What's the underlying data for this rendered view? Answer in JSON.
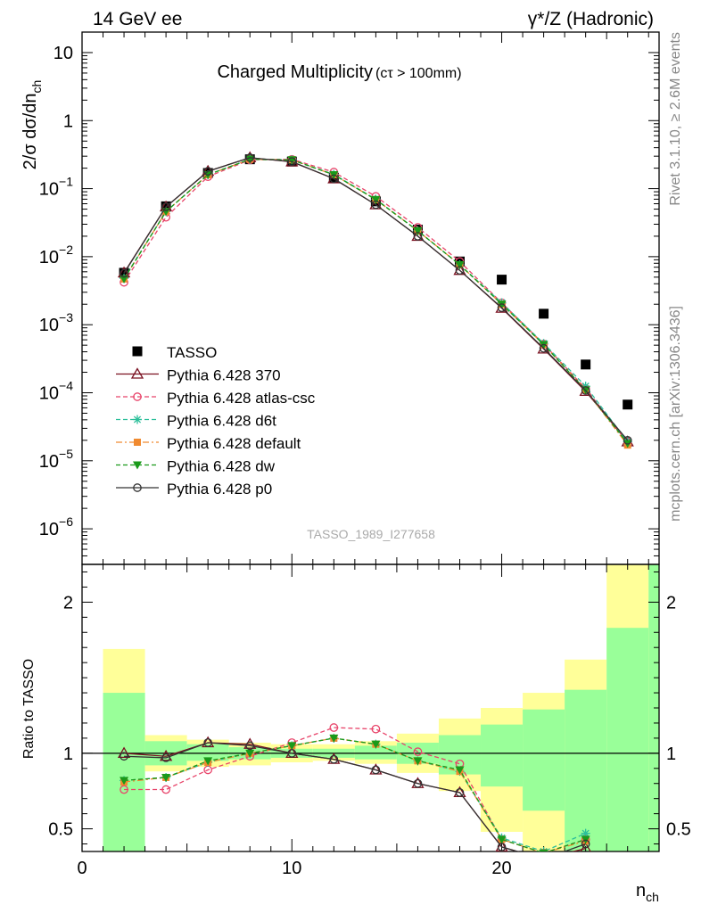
{
  "header": {
    "left": "14 GeV ee",
    "right": "γ*/Z (Hadronic)"
  },
  "side": {
    "rivet": "Rivet 3.1.10, ≥ 2.6M events",
    "mcplots": "mcplots.cern.ch [arXiv:1306.3436]"
  },
  "watermark": "TASSO_1989_I277658",
  "chart_data": [
    {
      "type": "line",
      "title": "Charged Multiplicity",
      "title_suffix": "(cτ > 100mm)",
      "ylabel": "2/σ dσ/dn_ch",
      "ylabel_main": "2/σ dσ/dn",
      "ylabel_sub": "ch",
      "yscale": "log",
      "ylim": [
        3e-07,
        20
      ],
      "xlim": [
        0,
        27.5
      ],
      "yticks": [
        {
          "v": 10,
          "m": "10",
          "e": ""
        },
        {
          "v": 1,
          "m": "1",
          "e": ""
        },
        {
          "v": 0.1,
          "m": "10",
          "e": "−1"
        },
        {
          "v": 0.01,
          "m": "10",
          "e": "−2"
        },
        {
          "v": 0.001,
          "m": "10",
          "e": "−3"
        },
        {
          "v": 0.0001,
          "m": "10",
          "e": "−4"
        },
        {
          "v": 1e-05,
          "m": "10",
          "e": "−5"
        },
        {
          "v": 1e-06,
          "m": "10",
          "e": "−6"
        }
      ],
      "legend_position": "left-middle",
      "series": [
        {
          "name": "TASSO",
          "style": "data",
          "marker": "square",
          "color": "#000000",
          "x": [
            2,
            4,
            6,
            8,
            10,
            12,
            14,
            16,
            18,
            20,
            22,
            24,
            26
          ],
          "y": [
            0.0058,
            0.055,
            0.17,
            0.27,
            0.25,
            0.145,
            0.065,
            0.025,
            0.0085,
            0.0046,
            0.00145,
            0.00026,
            6.7e-05
          ]
        },
        {
          "name": "Pythia 6.428 370",
          "style": "solid",
          "marker": "triangle-open",
          "color": "#7a1020",
          "x": [
            2,
            4,
            6,
            8,
            10,
            12,
            14,
            16,
            18,
            20,
            22,
            24,
            26
          ],
          "y": [
            0.0058,
            0.054,
            0.18,
            0.285,
            0.248,
            0.14,
            0.058,
            0.02,
            0.0063,
            0.00175,
            0.00044,
            0.000105,
            1.9e-05
          ]
        },
        {
          "name": "Pythia 6.428 atlas-csc",
          "style": "dashed",
          "marker": "circle-open",
          "color": "#e8446a",
          "x": [
            2,
            4,
            6,
            8,
            10,
            12,
            14,
            16,
            18,
            20,
            22,
            24,
            26
          ],
          "y": [
            0.0042,
            0.038,
            0.15,
            0.265,
            0.27,
            0.175,
            0.077,
            0.027,
            0.0085,
            0.0021,
            0.00052,
            0.000115,
            1.9e-05
          ]
        },
        {
          "name": "Pythia 6.428 d6t",
          "style": "dashed",
          "marker": "star",
          "color": "#2cbf9a",
          "x": [
            2,
            4,
            6,
            8,
            10,
            12,
            14,
            16,
            18,
            20,
            22,
            24,
            26
          ],
          "y": [
            0.0048,
            0.046,
            0.16,
            0.27,
            0.265,
            0.162,
            0.07,
            0.024,
            0.0076,
            0.0021,
            0.00053,
            0.000125,
            1.9e-05
          ]
        },
        {
          "name": "Pythia 6.428 default",
          "style": "dashdot",
          "marker": "square-filled",
          "color": "#f08a30",
          "x": [
            2,
            4,
            6,
            8,
            10,
            12,
            14,
            16,
            18,
            20,
            22,
            24,
            26
          ],
          "y": [
            0.0047,
            0.046,
            0.16,
            0.27,
            0.265,
            0.16,
            0.069,
            0.024,
            0.0076,
            0.002,
            0.00051,
            0.00011,
            1.7e-05
          ]
        },
        {
          "name": "Pythia 6.428 dw",
          "style": "dashed",
          "marker": "triangle-down",
          "color": "#1a9a1a",
          "x": [
            2,
            4,
            6,
            8,
            10,
            12,
            14,
            16,
            18,
            20,
            22,
            24,
            26
          ],
          "y": [
            0.0047,
            0.046,
            0.16,
            0.27,
            0.265,
            0.16,
            0.069,
            0.024,
            0.0076,
            0.002,
            0.00051,
            0.00011,
            1.8e-05
          ]
        },
        {
          "name": "Pythia 6.428 p0",
          "style": "solid",
          "marker": "circle-open",
          "color": "#333333",
          "x": [
            2,
            4,
            6,
            8,
            10,
            12,
            14,
            16,
            18,
            20,
            22,
            24,
            26
          ],
          "y": [
            0.0057,
            0.054,
            0.18,
            0.285,
            0.25,
            0.14,
            0.058,
            0.02,
            0.0063,
            0.00178,
            0.00045,
            0.000108,
            2e-05
          ]
        }
      ]
    },
    {
      "type": "line",
      "ylabel": "Ratio to TASSO",
      "xlabel": "n_ch",
      "xlabel_main": "n",
      "xlabel_sub": "ch",
      "xlim": [
        0,
        27.5
      ],
      "ylim": [
        0.35,
        2.25
      ],
      "xticks": [
        0,
        10,
        20
      ],
      "yticks": [
        {
          "v": 0.5,
          "m": "0.5",
          "e": ""
        },
        {
          "v": 1,
          "m": "1",
          "e": ""
        },
        {
          "v": 2,
          "m": "2",
          "e": ""
        }
      ],
      "bands": [
        {
          "x0": 1,
          "x1": 3,
          "y1": [
            0.73,
            1.69
          ],
          "y2": [
            0.35,
            1.4
          ]
        },
        {
          "x0": 3,
          "x1": 5,
          "y1": [
            0.88,
            1.12
          ],
          "y2": [
            0.92,
            1.08
          ]
        },
        {
          "x0": 5,
          "x1": 7,
          "y1": [
            0.91,
            1.09
          ],
          "y2": [
            0.95,
            1.06
          ]
        },
        {
          "x0": 7,
          "x1": 9,
          "y1": [
            0.92,
            1.07
          ],
          "y2": [
            0.96,
            1.04
          ]
        },
        {
          "x0": 9,
          "x1": 11,
          "y1": [
            0.94,
            1.06
          ],
          "y2": [
            0.97,
            1.03
          ]
        },
        {
          "x0": 11,
          "x1": 13,
          "y1": [
            0.95,
            1.06
          ],
          "y2": [
            0.97,
            1.03
          ]
        },
        {
          "x0": 13,
          "x1": 15,
          "y1": [
            0.93,
            1.08
          ],
          "y2": [
            0.96,
            1.05
          ]
        },
        {
          "x0": 15,
          "x1": 17,
          "y1": [
            0.87,
            1.13
          ],
          "y2": [
            0.93,
            1.07
          ]
        },
        {
          "x0": 17,
          "x1": 19,
          "y1": [
            0.75,
            1.23
          ],
          "y2": [
            0.86,
            1.12
          ]
        },
        {
          "x0": 19,
          "x1": 21,
          "y1": [
            0.48,
            1.3
          ],
          "y2": [
            0.78,
            1.19
          ]
        },
        {
          "x0": 21,
          "x1": 23,
          "y1": [
            0.35,
            1.4
          ],
          "y2": [
            0.62,
            1.29
          ]
        },
        {
          "x0": 23,
          "x1": 25,
          "y1": [
            0.35,
            1.62
          ],
          "y2": [
            0.35,
            1.42
          ]
        },
        {
          "x0": 25,
          "x1": 27,
          "y1": [
            0.35,
            2.25
          ],
          "y2": [
            0.35,
            1.83
          ]
        },
        {
          "x0": 27,
          "x1": 29,
          "y1": [
            0.35,
            2.25
          ],
          "y2": [
            0.35,
            2.25
          ]
        }
      ],
      "series": [
        {
          "name": "Pythia 6.428 370",
          "style": "solid",
          "marker": "triangle-open",
          "color": "#7a1020",
          "x": [
            2,
            4,
            6,
            8,
            10,
            12,
            14,
            16,
            18,
            20,
            22,
            24
          ],
          "y": [
            1.0,
            0.98,
            1.07,
            1.06,
            1.0,
            0.96,
            0.89,
            0.8,
            0.74,
            0.38,
            0.3,
            0.37
          ]
        },
        {
          "name": "Pythia 6.428 atlas-csc",
          "style": "dashed",
          "marker": "circle-open",
          "color": "#e8446a",
          "x": [
            2,
            4,
            6,
            8,
            10,
            12,
            14,
            16,
            18,
            20,
            22,
            24
          ],
          "y": [
            0.76,
            0.76,
            0.89,
            0.98,
            1.07,
            1.17,
            1.16,
            1.01,
            0.93,
            0.43,
            0.34,
            0.43
          ]
        },
        {
          "name": "Pythia 6.428 d6t",
          "style": "dashed",
          "marker": "star",
          "color": "#2cbf9a",
          "x": [
            2,
            4,
            6,
            8,
            10,
            12,
            14,
            16,
            18,
            20,
            22,
            24
          ],
          "y": [
            0.82,
            0.84,
            0.94,
            1.0,
            1.05,
            1.1,
            1.06,
            0.95,
            0.88,
            0.44,
            0.35,
            0.47
          ]
        },
        {
          "name": "Pythia 6.428 default",
          "style": "dashdot",
          "marker": "square-filled",
          "color": "#f08a30",
          "x": [
            2,
            4,
            6,
            8,
            10,
            12,
            14,
            16,
            18,
            20,
            22,
            24
          ],
          "y": [
            0.81,
            0.84,
            0.94,
            1.0,
            1.05,
            1.1,
            1.06,
            0.95,
            0.88,
            0.43,
            0.34,
            0.42
          ]
        },
        {
          "name": "Pythia 6.428 dw",
          "style": "dashed",
          "marker": "triangle-down",
          "color": "#1a9a1a",
          "x": [
            2,
            4,
            6,
            8,
            10,
            12,
            14,
            16,
            18,
            20,
            22,
            24
          ],
          "y": [
            0.82,
            0.84,
            0.95,
            1.0,
            1.05,
            1.1,
            1.06,
            0.95,
            0.89,
            0.43,
            0.34,
            0.43
          ]
        },
        {
          "name": "Pythia 6.428 p0",
          "style": "solid",
          "marker": "circle-open",
          "color": "#333333",
          "x": [
            2,
            4,
            6,
            8,
            10,
            12,
            14,
            16,
            18,
            20,
            22,
            24
          ],
          "y": [
            0.98,
            0.97,
            1.07,
            1.05,
            1.0,
            0.96,
            0.89,
            0.8,
            0.74,
            0.38,
            0.3,
            0.4
          ]
        }
      ]
    }
  ]
}
